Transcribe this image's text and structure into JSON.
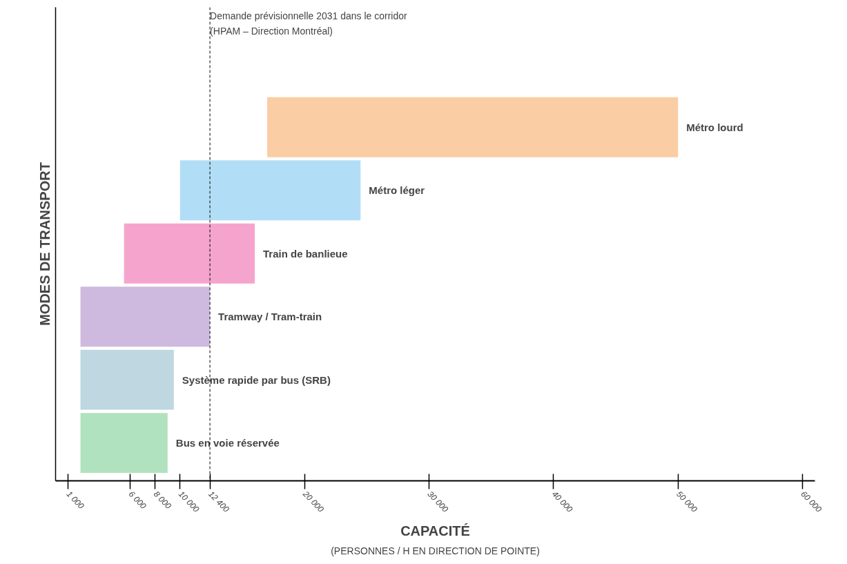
{
  "chart_data": {
    "type": "bar",
    "orientation": "horizontal",
    "categories": [
      "Métro lourd",
      "Métro léger",
      "Train de banlieue",
      "Tramway / Tram-train",
      "Système rapide par bus (SRB)",
      "Bus en voie réservée"
    ],
    "base": [
      17000,
      10000,
      5500,
      2000,
      2000,
      2000
    ],
    "values": [
      33000,
      14500,
      10500,
      10400,
      7500,
      7000
    ],
    "colors": [
      "#f9c89b",
      "#a9daf5",
      "#f49ac9",
      "#c9b3dc",
      "#b7d3dd",
      "#a8dfb8"
    ],
    "xlabel": "CAPACITÉ",
    "ylabel": "MODES DE TRANSPORT",
    "annotations": [
      "(PERSONNES / H EN DIRECTION DE POINTE)"
    ],
    "ref_lines": [
      {
        "axis": "x",
        "value": 12400,
        "label": "Demande prévisionnelle 2031 dans le corridor\n(HPAM – Direction Montréal)",
        "line_style": "dashed",
        "color": "#000000"
      }
    ],
    "xlim": [
      0,
      61000
    ],
    "xticks": [
      {
        "value": 1000,
        "label": "1 000"
      },
      {
        "value": 6000,
        "label": "6 000"
      },
      {
        "value": 8000,
        "label": "8 000"
      },
      {
        "value": 10000,
        "label": "10 000"
      },
      {
        "value": 12400,
        "label": "12 400"
      },
      {
        "value": 20000,
        "label": "20 000"
      },
      {
        "value": 30000,
        "label": "30 000"
      },
      {
        "value": 40000,
        "label": "40 000"
      },
      {
        "value": 50000,
        "label": "50 000"
      },
      {
        "value": 60000,
        "label": "60 000"
      }
    ],
    "tick_labels": "x",
    "grid": false
  }
}
